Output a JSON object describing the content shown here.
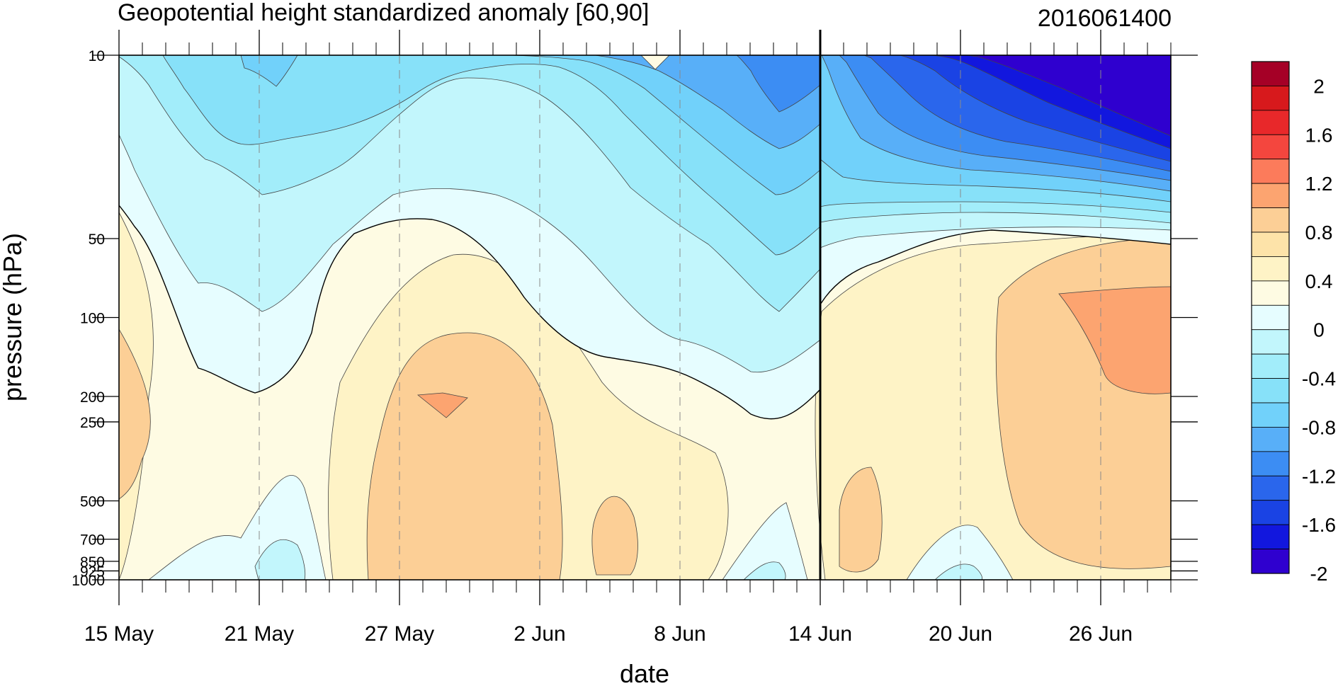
{
  "header": {
    "title": "Geopotential height standardized anomaly [60,90]",
    "stamp": "2016061400"
  },
  "chart_data": {
    "type": "heatmap",
    "xlabel": "date",
    "ylabel": "pressure (hPa)",
    "x_range": [
      "15 May",
      "29 Jun"
    ],
    "x_ticks": [
      "15 May",
      "21 May",
      "27 May",
      "2 Jun",
      "8 Jun",
      "14 Jun",
      "20 Jun",
      "26 Jun"
    ],
    "y_ticks": [
      "10",
      "50",
      "100",
      "200",
      "250",
      "500",
      "700",
      "850",
      "925",
      "1000"
    ],
    "y_scale": "log",
    "y_range": [
      1000,
      10
    ],
    "grid": "dashed vertical at major date ticks",
    "vertical_marker": "14 Jun",
    "colorbar": {
      "labels": [
        "2",
        "1.6",
        "1.2",
        "0.8",
        "0.4",
        "0",
        "-0.4",
        "-0.8",
        "-1.2",
        "-1.6",
        "-2"
      ],
      "colors": [
        "#A50026",
        "#D7191C",
        "#E8282A",
        "#F4463E",
        "#FC7B5B",
        "#FCA470",
        "#FCCF96",
        "#FDE3A9",
        "#FEF3C6",
        "#FEFBE3",
        "#E6FDFF",
        "#C2F6FC",
        "#A2EDFA",
        "#87E1F9",
        "#71D1FA",
        "#58AFF8",
        "#3C8DF3",
        "#2A66EC",
        "#1A43E4",
        "#1217DE",
        "#2F00CF"
      ]
    },
    "approx_values_hPa_vs_date": {
      "days": [
        "15 May",
        "18 May",
        "21 May",
        "24 May",
        "27 May",
        "30 May",
        "2 Jun",
        "5 Jun",
        "8 Jun",
        "11 Jun",
        "14 Jun",
        "17 Jun",
        "20 Jun",
        "23 Jun",
        "26 Jun",
        "29 Jun"
      ],
      "levels": [
        10,
        50,
        100,
        250,
        500,
        1000
      ],
      "values": [
        [
          -0.5,
          -1.0,
          -1.1,
          -0.9,
          -0.7,
          -0.6,
          -0.9,
          -1.2,
          -1.4,
          -1.7,
          -1.3,
          -1.8,
          -2.3,
          -2.6,
          -2.8,
          -3.0
        ],
        [
          0.1,
          -0.4,
          -0.8,
          -0.4,
          -0.2,
          -0.1,
          -0.4,
          -0.8,
          -1.1,
          -1.3,
          -0.6,
          -0.3,
          -0.3,
          -0.3,
          -0.1,
          0.0
        ],
        [
          0.3,
          0.0,
          -0.2,
          0.1,
          0.3,
          0.4,
          0.1,
          -0.3,
          -0.5,
          -0.7,
          0.1,
          0.2,
          0.4,
          0.6,
          0.8,
          0.8
        ],
        [
          0.6,
          0.0,
          0.1,
          0.3,
          0.6,
          0.8,
          0.5,
          0.3,
          0.2,
          0.0,
          0.0,
          0.3,
          0.5,
          0.7,
          0.8,
          0.8
        ],
        [
          0.4,
          0.1,
          -0.2,
          0.2,
          0.6,
          0.7,
          0.5,
          0.5,
          0.3,
          -0.1,
          0.3,
          0.6,
          0.1,
          0.5,
          0.7,
          0.6
        ],
        [
          0.1,
          -0.3,
          -0.5,
          0.1,
          0.4,
          0.5,
          0.3,
          0.3,
          0.2,
          -0.3,
          0.2,
          0.1,
          -0.4,
          0.1,
          0.4,
          0.3
        ]
      ]
    }
  }
}
